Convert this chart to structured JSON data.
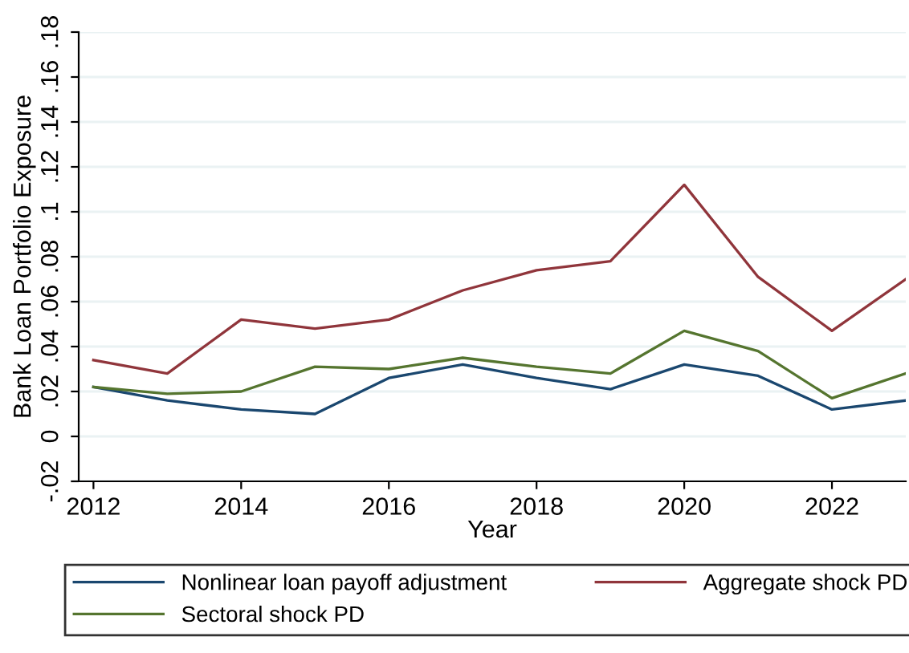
{
  "chart_data": {
    "type": "line",
    "xlabel": "Year",
    "ylabel": "Bank Loan Portfolio Exposure",
    "x": [
      2012,
      2013,
      2014,
      2015,
      2016,
      2017,
      2018,
      2019,
      2020,
      2021,
      2022,
      2023
    ],
    "series": [
      {
        "name": "Nonlinear loan payoff adjustment",
        "color": "#1a476f",
        "values": [
          0.022,
          0.016,
          0.012,
          0.01,
          0.026,
          0.032,
          0.026,
          0.021,
          0.032,
          0.027,
          0.012,
          0.016
        ]
      },
      {
        "name": "Aggregate shock PD",
        "color": "#90353b",
        "values": [
          0.034,
          0.028,
          0.052,
          0.048,
          0.052,
          0.065,
          0.074,
          0.078,
          0.112,
          0.071,
          0.047,
          0.07
        ]
      },
      {
        "name": "Sectoral shock PD",
        "color": "#55752f",
        "values": [
          0.022,
          0.019,
          0.02,
          0.031,
          0.03,
          0.035,
          0.031,
          0.028,
          0.047,
          0.038,
          0.017,
          0.028
        ]
      }
    ],
    "xlim": [
      2011.8,
      2023
    ],
    "ylim": [
      -0.02,
      0.18
    ],
    "xticks": [
      2012,
      2014,
      2016,
      2018,
      2020,
      2022
    ],
    "yticks": [
      {
        "value": -0.02,
        "label": "-.02"
      },
      {
        "value": 0,
        "label": "0"
      },
      {
        "value": 0.02,
        "label": ".02"
      },
      {
        "value": 0.04,
        "label": ".04"
      },
      {
        "value": 0.06,
        "label": ".06"
      },
      {
        "value": 0.08,
        "label": ".08"
      },
      {
        "value": 0.1,
        "label": ".1"
      },
      {
        "value": 0.12,
        "label": ".12"
      },
      {
        "value": 0.14,
        "label": ".14"
      },
      {
        "value": 0.16,
        "label": ".16"
      },
      {
        "value": 0.18,
        "label": ".18"
      }
    ],
    "grid": "y",
    "legend": "bottom",
    "marker": "none",
    "line_style": "solid"
  }
}
